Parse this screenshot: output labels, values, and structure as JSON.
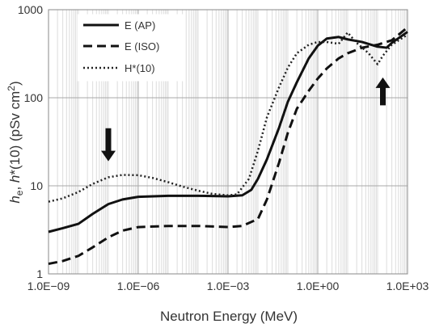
{
  "chart_data": {
    "type": "line",
    "x_scale": "log",
    "y_scale": "log",
    "xlim": [
      1e-09,
      1000
    ],
    "ylim": [
      1,
      1000
    ],
    "x_ticks": [
      "1.0E−09",
      "1.0E−06",
      "1.0E−03",
      "1.0E+00",
      "1.0E+03"
    ],
    "y_ticks": [
      "1",
      "10",
      "100",
      "1000"
    ],
    "xlabel": "Neutron Energy (MeV)",
    "ylabel": {
      "he": "h",
      "he_sub": "e",
      "sep": ", ",
      "hstar": "h",
      "rest": "*(10) (pSv cm",
      "sup": "2",
      "close": ")"
    },
    "grid": "vertical minor and major",
    "legend_position": "top-left",
    "series": [
      {
        "name": "E (AP)",
        "dash": "solid",
        "points": [
          [
            1e-09,
            3.0
          ],
          [
            3e-09,
            3.3
          ],
          [
            1e-08,
            3.7
          ],
          [
            3e-08,
            4.8
          ],
          [
            1e-07,
            6.2
          ],
          [
            3e-07,
            7.0
          ],
          [
            1e-06,
            7.5
          ],
          [
            1e-05,
            7.7
          ],
          [
            0.0001,
            7.7
          ],
          [
            0.001,
            7.6
          ],
          [
            0.003,
            7.8
          ],
          [
            0.006,
            9.0
          ],
          [
            0.01,
            12
          ],
          [
            0.02,
            20
          ],
          [
            0.05,
            45
          ],
          [
            0.1,
            90
          ],
          [
            0.2,
            150
          ],
          [
            0.5,
            280
          ],
          [
            1,
            390
          ],
          [
            2,
            470
          ],
          [
            5,
            490
          ],
          [
            10,
            460
          ],
          [
            30,
            430
          ],
          [
            100,
            380
          ],
          [
            200,
            370
          ],
          [
            300,
            420
          ],
          [
            1000,
            560
          ]
        ]
      },
      {
        "name": "E (ISO)",
        "dash": "dashed",
        "points": [
          [
            1e-09,
            1.3
          ],
          [
            3e-09,
            1.4
          ],
          [
            1e-08,
            1.6
          ],
          [
            3e-08,
            2.0
          ],
          [
            1e-07,
            2.6
          ],
          [
            3e-07,
            3.1
          ],
          [
            1e-06,
            3.4
          ],
          [
            1e-05,
            3.5
          ],
          [
            0.0001,
            3.5
          ],
          [
            0.001,
            3.4
          ],
          [
            0.003,
            3.5
          ],
          [
            0.01,
            4.2
          ],
          [
            0.02,
            7
          ],
          [
            0.05,
            18
          ],
          [
            0.1,
            40
          ],
          [
            0.2,
            75
          ],
          [
            0.5,
            120
          ],
          [
            1,
            165
          ],
          [
            2,
            215
          ],
          [
            5,
            280
          ],
          [
            10,
            320
          ],
          [
            30,
            370
          ],
          [
            100,
            400
          ],
          [
            300,
            450
          ],
          [
            1000,
            630
          ]
        ]
      },
      {
        "name": "H*(10)",
        "dash": "dotted",
        "points": [
          [
            1e-09,
            6.6
          ],
          [
            3e-09,
            7.2
          ],
          [
            1e-08,
            8.5
          ],
          [
            3e-08,
            10.5
          ],
          [
            1e-07,
            12.5
          ],
          [
            3e-07,
            13.3
          ],
          [
            1e-06,
            13.2
          ],
          [
            3e-06,
            12.3
          ],
          [
            1e-05,
            11.0
          ],
          [
            3e-05,
            9.8
          ],
          [
            0.0001,
            8.8
          ],
          [
            0.0003,
            8.1
          ],
          [
            0.001,
            7.8
          ],
          [
            0.002,
            8.0
          ],
          [
            0.005,
            12
          ],
          [
            0.01,
            25
          ],
          [
            0.02,
            60
          ],
          [
            0.05,
            130
          ],
          [
            0.1,
            220
          ],
          [
            0.2,
            320
          ],
          [
            0.5,
            400
          ],
          [
            1,
            430
          ],
          [
            2,
            430
          ],
          [
            5,
            410
          ],
          [
            10,
            550
          ],
          [
            20,
            420
          ],
          [
            50,
            320
          ],
          [
            100,
            240
          ],
          [
            150,
            300
          ],
          [
            300,
            400
          ],
          [
            1000,
            520
          ]
        ]
      }
    ],
    "annotations": [
      {
        "type": "arrow",
        "direction": "down",
        "x": 1e-07,
        "y_from": 45,
        "y_to": 19
      },
      {
        "type": "arrow",
        "direction": "up",
        "x": 150,
        "y_from": 82,
        "y_to": 170
      }
    ]
  },
  "legend_swatch_icons": [
    "solid-line",
    "dashed-line",
    "dotted-line"
  ]
}
